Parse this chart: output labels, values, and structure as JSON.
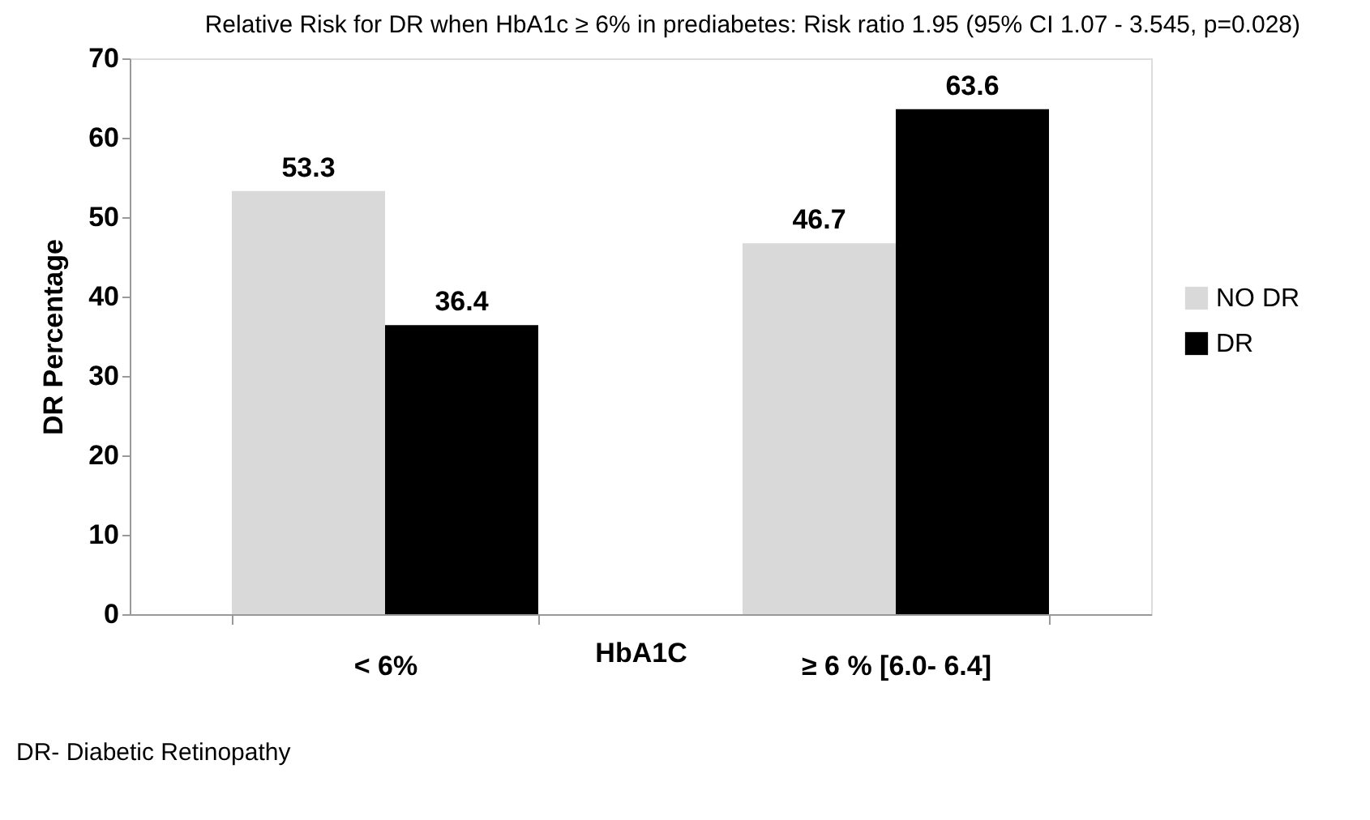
{
  "chart_data": {
    "type": "bar",
    "title": "Relative Risk for DR when HbA1c ≥ 6% in prediabetes: Risk ratio 1.95 (95% CI 1.07 - 3.545, p=0.028)",
    "xlabel": "HbA1C",
    "ylabel": "DR Percentage",
    "categories": [
      "< 6%",
      "≥ 6 % [6.0- 6.4]"
    ],
    "series": [
      {
        "name": "NO DR",
        "color": "#d9d9d9",
        "values": [
          53.3,
          46.7
        ]
      },
      {
        "name": "DR",
        "color": "#000000",
        "values": [
          36.4,
          63.6
        ]
      }
    ],
    "ylim": [
      0,
      70
    ],
    "yticks": [
      0,
      10,
      20,
      30,
      40,
      50,
      60,
      70
    ],
    "grid": false,
    "legend": "right",
    "data_labels": true,
    "annotations": [
      "DR- Diabetic Retinopathy"
    ]
  }
}
